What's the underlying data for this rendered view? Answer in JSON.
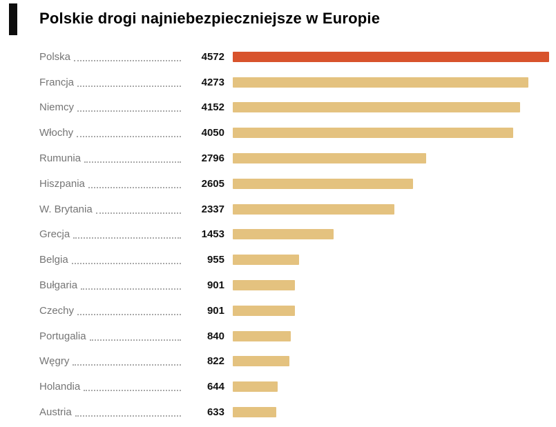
{
  "title": "Polskie drogi najniebezpieczniejsze w Europie",
  "accent_color": "#0d0d0d",
  "chart_data": {
    "type": "bar",
    "orientation": "horizontal",
    "title": "Polskie drogi najniebezpieczniejsze w Europie",
    "xlabel": "",
    "ylabel": "",
    "xlim": [
      0,
      4572
    ],
    "grid": false,
    "legend": false,
    "highlight_index": 0,
    "highlight_color": "#d8532c",
    "bar_color": "#e4c27f",
    "categories": [
      "Polska",
      "Francja",
      "Niemcy",
      "Włochy",
      "Rumunia",
      "Hiszpania",
      "W. Brytania",
      "Grecja",
      "Belgia",
      "Bułgaria",
      "Czechy",
      "Portugalia",
      "Węgry",
      "Holandia",
      "Austria"
    ],
    "values": [
      4572,
      4273,
      4152,
      4050,
      2796,
      2605,
      2337,
      1453,
      955,
      901,
      901,
      840,
      822,
      644,
      633
    ]
  }
}
